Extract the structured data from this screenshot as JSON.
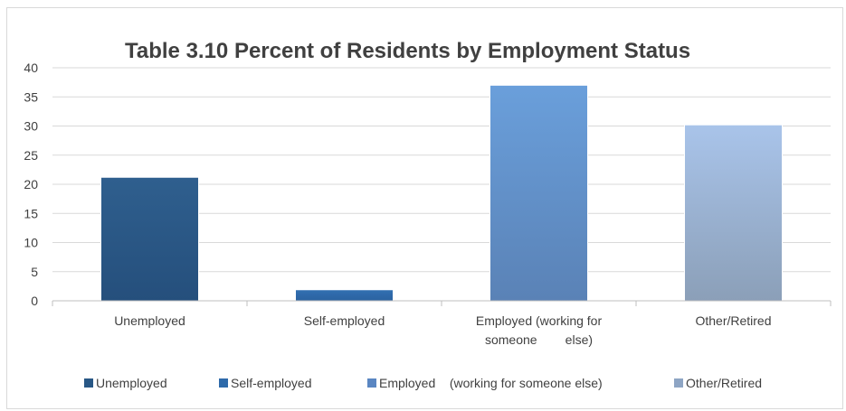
{
  "chart_data": {
    "type": "bar",
    "title": "Table 3.10 Percent of Residents by Employment  Status",
    "xlabel": "",
    "ylabel": "",
    "ylim": [
      0,
      40
    ],
    "yticks": [
      0,
      5,
      10,
      15,
      20,
      25,
      30,
      35,
      40
    ],
    "grid": true,
    "legend_position": "bottom",
    "categories": [
      {
        "label_lines": [
          "Unemployed"
        ]
      },
      {
        "label_lines": [
          "Self-employed"
        ]
      },
      {
        "label_lines": [
          "Employed (working for",
          "someone        else)"
        ]
      },
      {
        "label_lines": [
          "Other/Retired"
        ]
      }
    ],
    "values": [
      21.2,
      1.9,
      37,
      30.2
    ],
    "bar_colors": [
      [
        "#2f5f8e",
        "#254f7c"
      ],
      [
        "#3270b2",
        "#2b62a0"
      ],
      [
        "#6a9fdb",
        "#5a82b6"
      ],
      [
        "#a9c4ea",
        "#8b9fb8"
      ]
    ],
    "legend": [
      {
        "label": "Unemployed",
        "color": "#285785"
      },
      {
        "label": "Self-employed",
        "color": "#2e6aaa"
      },
      {
        "label": "Employed    (working for someone else)",
        "color": "#5a86c2"
      },
      {
        "label": "Other/Retired",
        "color": "#8ea5c4"
      }
    ]
  }
}
